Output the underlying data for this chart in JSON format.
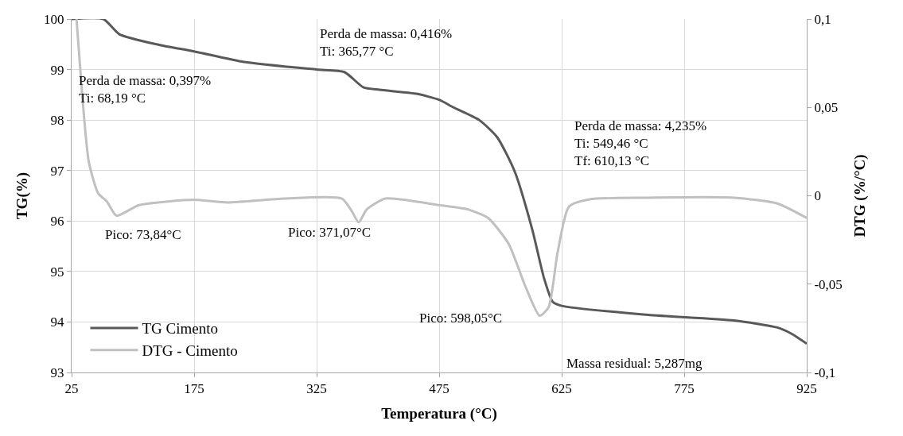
{
  "chart_data": {
    "type": "line",
    "xlabel": "Temperatura (°C)",
    "ylabel": "TG(%)",
    "y2label": "DTG (%/°C)",
    "xlim": [
      25,
      925
    ],
    "xticks": [
      25,
      175,
      325,
      475,
      625,
      775,
      925
    ],
    "ylim": [
      93,
      100
    ],
    "yticks": [
      93,
      94,
      95,
      96,
      97,
      98,
      99,
      100
    ],
    "y2lim": [
      -0.1,
      0.1
    ],
    "y2ticks": [
      {
        "value": -0.1,
        "label": "-0,1"
      },
      {
        "value": -0.05,
        "label": "-0,05"
      },
      {
        "value": 0,
        "label": "0"
      },
      {
        "value": 0.05,
        "label": "0,05"
      },
      {
        "value": 0.1,
        "label": "0,1"
      }
    ],
    "grid": true,
    "legend": "bottom left",
    "marker": "none",
    "line_style": "solid",
    "series": [
      {
        "name": "TG Cimento",
        "color": "#595959",
        "x": [
          25,
          64,
          83.4,
          132,
          175,
          236,
          325,
          359,
          382,
          402,
          447,
          475,
          492.5,
          524,
          546,
          567.5,
          589,
          603.5,
          614,
          625,
          731,
          836,
          889,
          906,
          925
        ],
        "values": [
          100,
          100,
          99.7,
          99.49,
          99.36,
          99.15,
          99.0,
          98.95,
          98.65,
          98.6,
          98.52,
          98.4,
          98.25,
          98.0,
          97.66,
          96.98,
          95.83,
          94.86,
          94.4,
          94.32,
          94.14,
          94.03,
          93.89,
          93.77,
          93.57
        ]
      },
      {
        "name": "DTG - Cimento",
        "color": "#c0c0c0",
        "axis": "y2",
        "x": [
          31,
          38,
          46,
          57.5,
          68,
          80,
          107.5,
          175,
          216,
          285.5,
          356,
          368.5,
          376.5,
          386.5,
          409,
          445,
          475,
          510,
          535,
          560,
          581,
          598,
          609,
          620,
          634,
          659,
          730,
          836,
          889,
          925
        ],
        "values": [
          0.1,
          0.0569,
          0.0194,
          0.0014,
          -0.0031,
          -0.0113,
          -0.0053,
          -0.0023,
          -0.0038,
          -0.0016,
          -0.0016,
          -0.0091,
          -0.0151,
          -0.0076,
          -0.0016,
          -0.0031,
          -0.0053,
          -0.0077,
          -0.0126,
          -0.0272,
          -0.0518,
          -0.0679,
          -0.0631,
          -0.0321,
          -0.0061,
          -0.002,
          -0.0011,
          -0.0011,
          -0.0044,
          -0.0126
        ]
      }
    ],
    "annotations": [
      "Perda de massa: 0,397%\nTi: 68,19 °C",
      "Perda de massa: 0,416%\nTi: 365,77 °C",
      "Perda de massa: 4,235%\nTi: 549,46 °C\nTf: 610,13 °C",
      "Pico: 73,84°C",
      "Pico: 371,07°C",
      "Pico: 598,05°C",
      "Massa residual: 5,287mg"
    ]
  }
}
